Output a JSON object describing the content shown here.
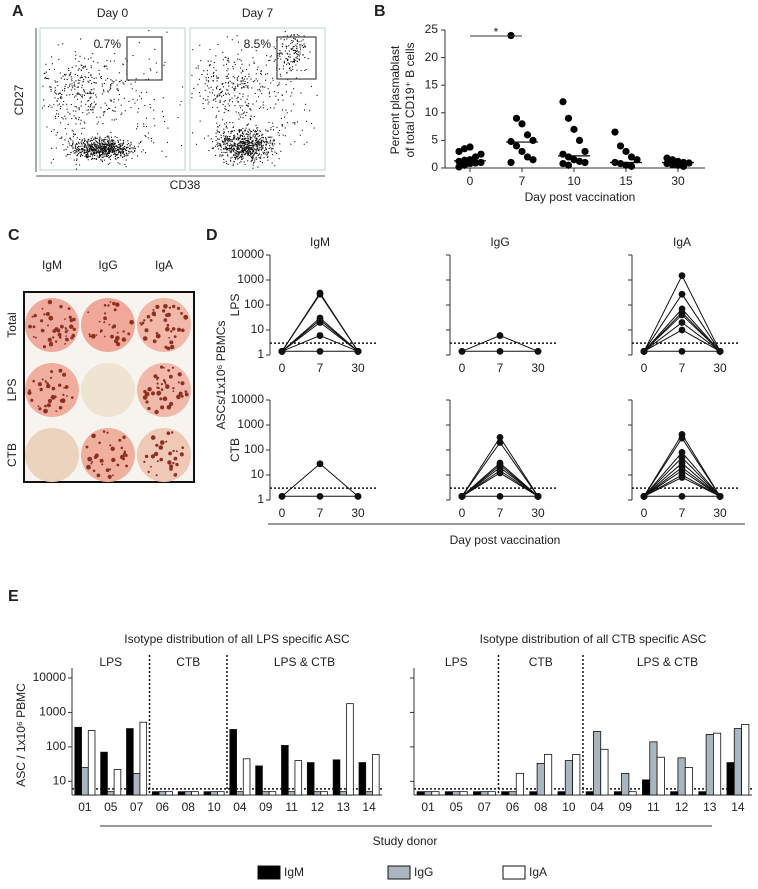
{
  "chart_data": [
    {
      "type": "density",
      "panel": "A",
      "plots": [
        {
          "title": "Day 0",
          "gate_label": "0.7%"
        },
        {
          "title": "Day 7",
          "gate_label": "8.5%"
        }
      ],
      "ylabel": "CD27",
      "xlabel": "CD38"
    },
    {
      "type": "dotplot",
      "panel": "B",
      "ylabel": [
        "Percent plasmablast",
        "of total CD19⁺ B cells"
      ],
      "xlabel": "Day post vaccination",
      "categories": [
        "0",
        "7",
        "10",
        "15",
        "30"
      ],
      "values": [
        [
          0.2,
          0.5,
          0.8,
          0.9,
          1.0,
          1.2,
          1.4,
          1.5,
          2.0,
          2.5,
          3.0,
          3.5,
          3.8
        ],
        [
          24,
          9,
          8,
          6,
          5,
          4.8,
          4,
          3,
          2,
          1.5,
          1
        ],
        [
          12,
          9,
          7,
          5,
          3,
          2.5,
          2,
          1.5,
          1.2,
          1,
          0.8,
          0.5
        ],
        [
          6.5,
          4,
          3,
          2,
          1.5,
          1,
          0.8,
          0.5,
          0.3
        ],
        [
          1.8,
          1.5,
          1.2,
          1,
          0.9,
          0.8,
          0.6,
          0.5,
          0.3
        ]
      ],
      "medians": [
        1.3,
        4.7,
        2.2,
        1,
        1
      ],
      "ylim": [
        0,
        25
      ],
      "yticks": [
        0,
        5,
        10,
        15,
        20,
        25
      ],
      "annotation": "*",
      "color": "#000000"
    },
    {
      "type": "image-grid",
      "panel": "C",
      "columns": [
        "IgM",
        "IgG",
        "IgA"
      ],
      "rows": [
        "Total",
        "LPS",
        "CTB"
      ]
    },
    {
      "type": "line-grid",
      "panel": "D",
      "columns": [
        "IgM",
        "IgG",
        "IgA"
      ],
      "rows": [
        "LPS",
        "CTB"
      ],
      "ylabel": "ASCs/1x10⁶ PBMCs",
      "xlabel": "Day post vaccination",
      "categories": [
        "0",
        "7",
        "30"
      ],
      "ylim": [
        1,
        10000
      ],
      "yticks": [
        1,
        10,
        100,
        1000,
        10000
      ],
      "log_scale": true,
      "threshold": 3,
      "panels": [
        [
          [
            1.4,
            300,
            1.4
          ],
          [
            1.4,
            270,
            1.4
          ],
          [
            1.4,
            30,
            1.4
          ],
          [
            1.4,
            25,
            1.4
          ],
          [
            1.4,
            20,
            1.4
          ],
          [
            1.4,
            6,
            1.4
          ],
          [
            1.4,
            1.4,
            1.4
          ]
        ],
        [
          [
            1.4,
            6,
            1.4
          ],
          [
            1.4,
            1.4,
            1.4
          ]
        ],
        [
          [
            1.4,
            1500,
            1.4
          ],
          [
            1.4,
            270,
            1.4
          ],
          [
            1.4,
            70,
            1.4
          ],
          [
            1.4,
            50,
            1.4
          ],
          [
            1.4,
            40,
            1.4
          ],
          [
            1.4,
            20,
            1.4
          ],
          [
            1.4,
            10,
            1.4
          ],
          [
            1.4,
            1.4,
            1.4
          ]
        ],
        [
          [
            1.4,
            28,
            1.4
          ],
          [
            1.4,
            1.4,
            1.4
          ]
        ],
        [
          [
            1.4,
            320,
            1.4
          ],
          [
            1.4,
            200,
            1.4
          ],
          [
            1.4,
            30,
            1.4
          ],
          [
            1.4,
            25,
            1.4
          ],
          [
            1.4,
            20,
            1.4
          ],
          [
            1.4,
            15,
            1.4
          ],
          [
            1.4,
            12,
            1.4
          ],
          [
            1.4,
            1.4,
            1.4
          ]
        ],
        [
          [
            1.4,
            420,
            1.4
          ],
          [
            1.4,
            300,
            1.4
          ],
          [
            1.4,
            80,
            1.4
          ],
          [
            1.4,
            50,
            1.4
          ],
          [
            1.4,
            30,
            1.4
          ],
          [
            1.4,
            20,
            1.4
          ],
          [
            1.4,
            15,
            1.4
          ],
          [
            1.4,
            10,
            1.4
          ],
          [
            1.4,
            8,
            1.4
          ],
          [
            1.4,
            1.4,
            1.4
          ]
        ]
      ]
    },
    {
      "type": "grouped-bar",
      "panel": "E",
      "ylabel": "ASC / 1x10⁶ PBMC",
      "xlabel": "Study donor",
      "ylim": [
        4,
        10000
      ],
      "yticks": [
        10,
        100,
        1000,
        10000
      ],
      "log_scale": true,
      "threshold": 6,
      "legend": [
        {
          "name": "IgM",
          "color": "#000000"
        },
        {
          "name": "IgG",
          "color": "#a9b6bf"
        },
        {
          "name": "IgA",
          "color": "#ffffff"
        }
      ],
      "charts": [
        {
          "title": "Isotype distribution of all LPS specific ASC",
          "groups": [
            {
              "label": "LPS",
              "categories": [
                "01",
                "05",
                "07"
              ]
            },
            {
              "label": "CTB",
              "categories": [
                "06",
                "08",
                "10"
              ]
            },
            {
              "label": "LPS & CTB",
              "categories": [
                "04",
                "09",
                "11",
                "12",
                "13",
                "14"
              ]
            }
          ],
          "series": [
            [
              370,
              70,
              340,
              5,
              5,
              5,
              320,
              28,
              110,
              35,
              42,
              35
            ],
            [
              25,
              5,
              17,
              5,
              5,
              5,
              5,
              5,
              5,
              5,
              5,
              5
            ],
            [
              300,
              22,
              520,
              5,
              5,
              5,
              45,
              5,
              40,
              5,
              1800,
              60
            ]
          ]
        },
        {
          "title": "Isotype distribution of all CTB specific ASC",
          "groups": [
            {
              "label": "LPS",
              "categories": [
                "01",
                "05",
                "07"
              ]
            },
            {
              "label": "CTB",
              "categories": [
                "06",
                "08",
                "10"
              ]
            },
            {
              "label": "LPS & CTB",
              "categories": [
                "04",
                "09",
                "11",
                "12",
                "13",
                "14"
              ]
            }
          ],
          "series": [
            [
              5,
              5,
              5,
              5,
              5,
              5,
              5,
              5,
              11,
              5,
              5,
              35
            ],
            [
              5,
              5,
              5,
              5,
              33,
              40,
              280,
              17,
              140,
              48,
              230,
              340
            ],
            [
              5,
              5,
              5,
              17,
              60,
              60,
              85,
              5,
              50,
              25,
              250,
              450
            ]
          ]
        }
      ]
    }
  ]
}
